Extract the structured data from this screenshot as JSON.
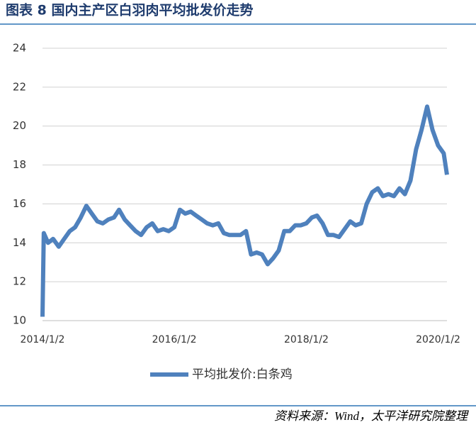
{
  "chart_data": {
    "type": "line",
    "title": "图表 8 国内主产区白羽肉平均批发价走势",
    "source": "资料来源：Wind，太平洋研究院整理",
    "x": [
      "2014/1/2",
      "2014/1/9",
      "2014/2/2",
      "2014/3/2",
      "2014/4/2",
      "2014/5/2",
      "2014/6/2",
      "2014/7/2",
      "2014/8/2",
      "2014/9/2",
      "2014/10/2",
      "2014/11/2",
      "2014/12/2",
      "2015/1/2",
      "2015/2/2",
      "2015/3/2",
      "2015/4/2",
      "2015/5/2",
      "2015/6/2",
      "2015/7/2",
      "2015/8/2",
      "2015/9/2",
      "2015/10/2",
      "2015/11/2",
      "2015/12/2",
      "2016/1/2",
      "2016/2/2",
      "2016/3/2",
      "2016/4/2",
      "2016/5/2",
      "2016/6/2",
      "2016/7/2",
      "2016/8/2",
      "2016/9/2",
      "2016/10/2",
      "2016/11/2",
      "2016/12/2",
      "2017/1/2",
      "2017/2/2",
      "2017/3/2",
      "2017/4/2",
      "2017/5/2",
      "2017/6/2",
      "2017/7/2",
      "2017/8/2",
      "2017/9/2",
      "2017/10/2",
      "2017/11/2",
      "2017/12/2",
      "2018/1/2",
      "2018/2/2",
      "2018/3/2",
      "2018/4/2",
      "2018/5/2",
      "2018/6/2",
      "2018/7/2",
      "2018/8/2",
      "2018/9/2",
      "2018/10/2",
      "2018/11/2",
      "2018/12/2",
      "2019/1/2",
      "2019/2/2",
      "2019/3/2",
      "2019/4/2",
      "2019/5/2",
      "2019/6/2",
      "2019/7/2",
      "2019/8/2",
      "2019/9/2",
      "2019/10/2",
      "2019/11/2",
      "2019/12/2",
      "2020/1/2",
      "2020/2/2",
      "2020/2/20"
    ],
    "series": [
      {
        "name": "平均批发价:白条鸡",
        "color": "#4f81bd",
        "values": [
          10.2,
          14.5,
          14.0,
          14.2,
          13.8,
          14.2,
          14.6,
          14.8,
          15.3,
          15.9,
          15.5,
          15.1,
          15.0,
          15.2,
          15.3,
          15.7,
          15.2,
          14.9,
          14.6,
          14.4,
          14.8,
          15.0,
          14.6,
          14.7,
          14.6,
          14.8,
          15.7,
          15.5,
          15.6,
          15.4,
          15.2,
          15.0,
          14.9,
          15.0,
          14.5,
          14.4,
          14.4,
          14.4,
          14.6,
          13.4,
          13.5,
          13.4,
          12.9,
          13.2,
          13.6,
          14.6,
          14.6,
          14.9,
          14.9,
          15.0,
          15.3,
          15.4,
          15.0,
          14.4,
          14.4,
          14.3,
          14.7,
          15.1,
          14.9,
          15.0,
          16.0,
          16.6,
          16.8,
          16.4,
          16.5,
          16.4,
          16.8,
          16.5,
          17.2,
          18.8,
          19.8,
          21.0,
          19.8,
          19.0,
          18.6,
          17.5
        ]
      }
    ],
    "xlim": [
      "2014/1/2",
      "2020/2/20"
    ],
    "xticks": [
      "2014/1/2",
      "2016/1/2",
      "2018/1/2",
      "2020/1/2"
    ],
    "ylim": [
      10,
      24
    ],
    "yticks": [
      10,
      12,
      14,
      16,
      18,
      20,
      22,
      24
    ],
    "grid": true
  }
}
